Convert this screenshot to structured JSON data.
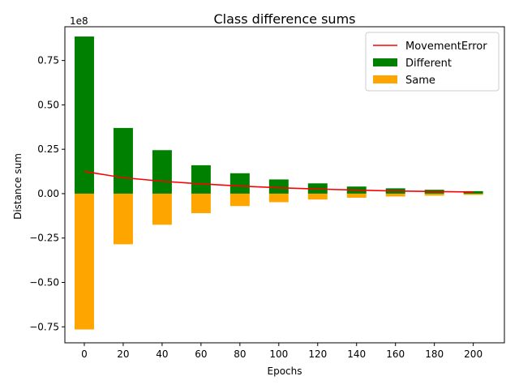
{
  "chart_data": {
    "type": "bar",
    "title": "Class difference sums",
    "xlabel": "Epochs",
    "ylabel": "Distance sum",
    "y_scale_label": "1e8",
    "x": [
      0,
      20,
      40,
      60,
      80,
      100,
      120,
      140,
      160,
      180,
      200
    ],
    "x_ticks": [
      "0",
      "20",
      "40",
      "60",
      "80",
      "100",
      "120",
      "140",
      "160",
      "180",
      "200"
    ],
    "y_ticks": [
      {
        "value": -0.75,
        "label": "−0.75"
      },
      {
        "value": -0.5,
        "label": "−0.50"
      },
      {
        "value": -0.25,
        "label": "−0.25"
      },
      {
        "value": 0.0,
        "label": "0.00"
      },
      {
        "value": 0.25,
        "label": "0.25"
      },
      {
        "value": 0.5,
        "label": "0.50"
      },
      {
        "value": 0.75,
        "label": "0.75"
      }
    ],
    "xlim": [
      -10,
      216
    ],
    "ylim": [
      -0.84,
      0.94
    ],
    "grid": false,
    "legend_position": "top-right",
    "series": [
      {
        "name": "Different",
        "kind": "bar",
        "color": "#008000",
        "values": [
          0.885,
          0.37,
          0.245,
          0.16,
          0.115,
          0.08,
          0.058,
          0.04,
          0.03,
          0.022,
          0.014
        ]
      },
      {
        "name": "Same",
        "kind": "bar",
        "color": "#FFA500",
        "values": [
          -0.765,
          -0.285,
          -0.175,
          -0.11,
          -0.07,
          -0.048,
          -0.033,
          -0.023,
          -0.016,
          -0.011,
          -0.007
        ]
      },
      {
        "name": "MovementError",
        "kind": "line",
        "color": "#FF0000",
        "values": [
          0.125,
          0.09,
          0.07,
          0.055,
          0.043,
          0.033,
          0.026,
          0.02,
          0.015,
          0.012,
          0.009
        ]
      }
    ],
    "legend_order": [
      "MovementError",
      "Different",
      "Same"
    ]
  }
}
